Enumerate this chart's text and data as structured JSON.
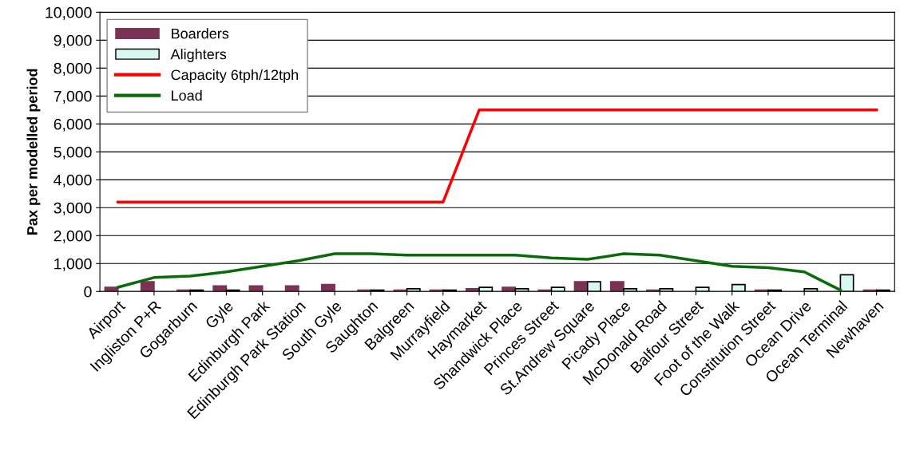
{
  "chart_data": {
    "type": "bar",
    "ylabel": "Pax per modelled period",
    "categories": [
      "Airport",
      "Ingliston P+R",
      "Gogarburn",
      "Gyle",
      "Edinburgh Park",
      "Edinburgh Park Station",
      "South Gyle",
      "Saughton",
      "Balgreen",
      "Murrayfield",
      "Haymarket",
      "Shandwick Place",
      "Princes Street",
      "St.Andrew Square",
      "Picady Place",
      "McDonald Road",
      "Balfour Street",
      "Foot of the Walk",
      "Constitution Street",
      "Ocean Drive",
      "Ocean Terminal",
      "Newhaven"
    ],
    "series": [
      {
        "name": "Boarders",
        "color": "#7b3355",
        "values": [
          150,
          350,
          50,
          200,
          200,
          200,
          250,
          50,
          50,
          50,
          100,
          150,
          50,
          350,
          350,
          50,
          0,
          0,
          50,
          0,
          0,
          50
        ]
      },
      {
        "name": "Alighters",
        "color": "#d8f7f2",
        "values": [
          0,
          0,
          50,
          50,
          0,
          0,
          0,
          50,
          100,
          50,
          150,
          100,
          150,
          350,
          100,
          100,
          150,
          250,
          50,
          100,
          600,
          50
        ]
      },
      {
        "name": "Capacity 6tph/12tph",
        "type": "line",
        "color": "#ff0000",
        "values": [
          3200,
          3200,
          3200,
          3200,
          3200,
          3200,
          3200,
          3200,
          3200,
          3200,
          6500,
          6500,
          6500,
          6500,
          6500,
          6500,
          6500,
          6500,
          6500,
          6500,
          6500,
          6500
        ]
      },
      {
        "name": "Load",
        "type": "line",
        "color": "#0a6b0a",
        "values": [
          150,
          500,
          550,
          700,
          900,
          1100,
          1350,
          1350,
          1300,
          1300,
          1300,
          1300,
          1200,
          1150,
          1350,
          1300,
          1100,
          900,
          850,
          700,
          50,
          null
        ]
      }
    ],
    "ylim": [
      0,
      10000
    ],
    "yticks": [
      {
        "value": 0,
        "label": "0"
      },
      {
        "value": 1000,
        "label": "1,000"
      },
      {
        "value": 2000,
        "label": "2,000"
      },
      {
        "value": 3000,
        "label": "3,000"
      },
      {
        "value": 4000,
        "label": "4,000"
      },
      {
        "value": 5000,
        "label": "5,000"
      },
      {
        "value": 6000,
        "label": "6,000"
      },
      {
        "value": 7000,
        "label": "7,000"
      },
      {
        "value": 8000,
        "label": "8,000"
      },
      {
        "value": 9000,
        "label": "9,000"
      },
      {
        "value": 10000,
        "label": "10,000"
      }
    ],
    "grid": "y",
    "legend": "top left"
  }
}
